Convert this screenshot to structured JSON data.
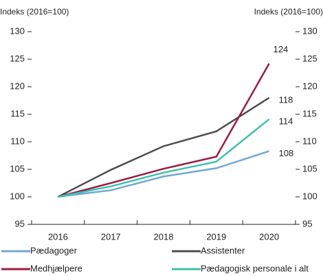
{
  "chart_data": {
    "type": "line",
    "y_label": "Indeks (2016=100)",
    "y2_label": "Indeks (2016=100)",
    "categories": [
      "2016",
      "2017",
      "2018",
      "2019",
      "2020"
    ],
    "series": [
      {
        "name": "Pædagoger",
        "color": "#6fa8d6",
        "values": [
          100,
          101.2,
          103.7,
          105.2,
          108.3
        ],
        "value_labels": [
          null,
          null,
          null,
          null,
          "108"
        ]
      },
      {
        "name": "Assistenter",
        "color": "#4d4d4d",
        "values": [
          100,
          104.9,
          109.2,
          111.9,
          118
        ],
        "value_labels": [
          null,
          null,
          null,
          null,
          "118"
        ]
      },
      {
        "name": "Medhjælpere",
        "color": "#9b1b42",
        "values": [
          100,
          102.5,
          105.1,
          107.3,
          124.2
        ],
        "value_labels": [
          null,
          null,
          null,
          null,
          "124"
        ]
      },
      {
        "name": "Pædagogisk personale i alt",
        "color": "#3fbfad",
        "values": [
          100,
          101.9,
          104.4,
          106.4,
          114.1
        ],
        "value_labels": [
          null,
          null,
          null,
          null,
          "114"
        ]
      }
    ],
    "ylim": [
      95,
      130
    ],
    "yticks": [
      95,
      100,
      105,
      110,
      115,
      120,
      125,
      130
    ],
    "y2lim": [
      95,
      130
    ],
    "y2ticks": [
      95,
      100,
      105,
      110,
      115,
      120,
      125,
      130
    ],
    "grid": false
  }
}
